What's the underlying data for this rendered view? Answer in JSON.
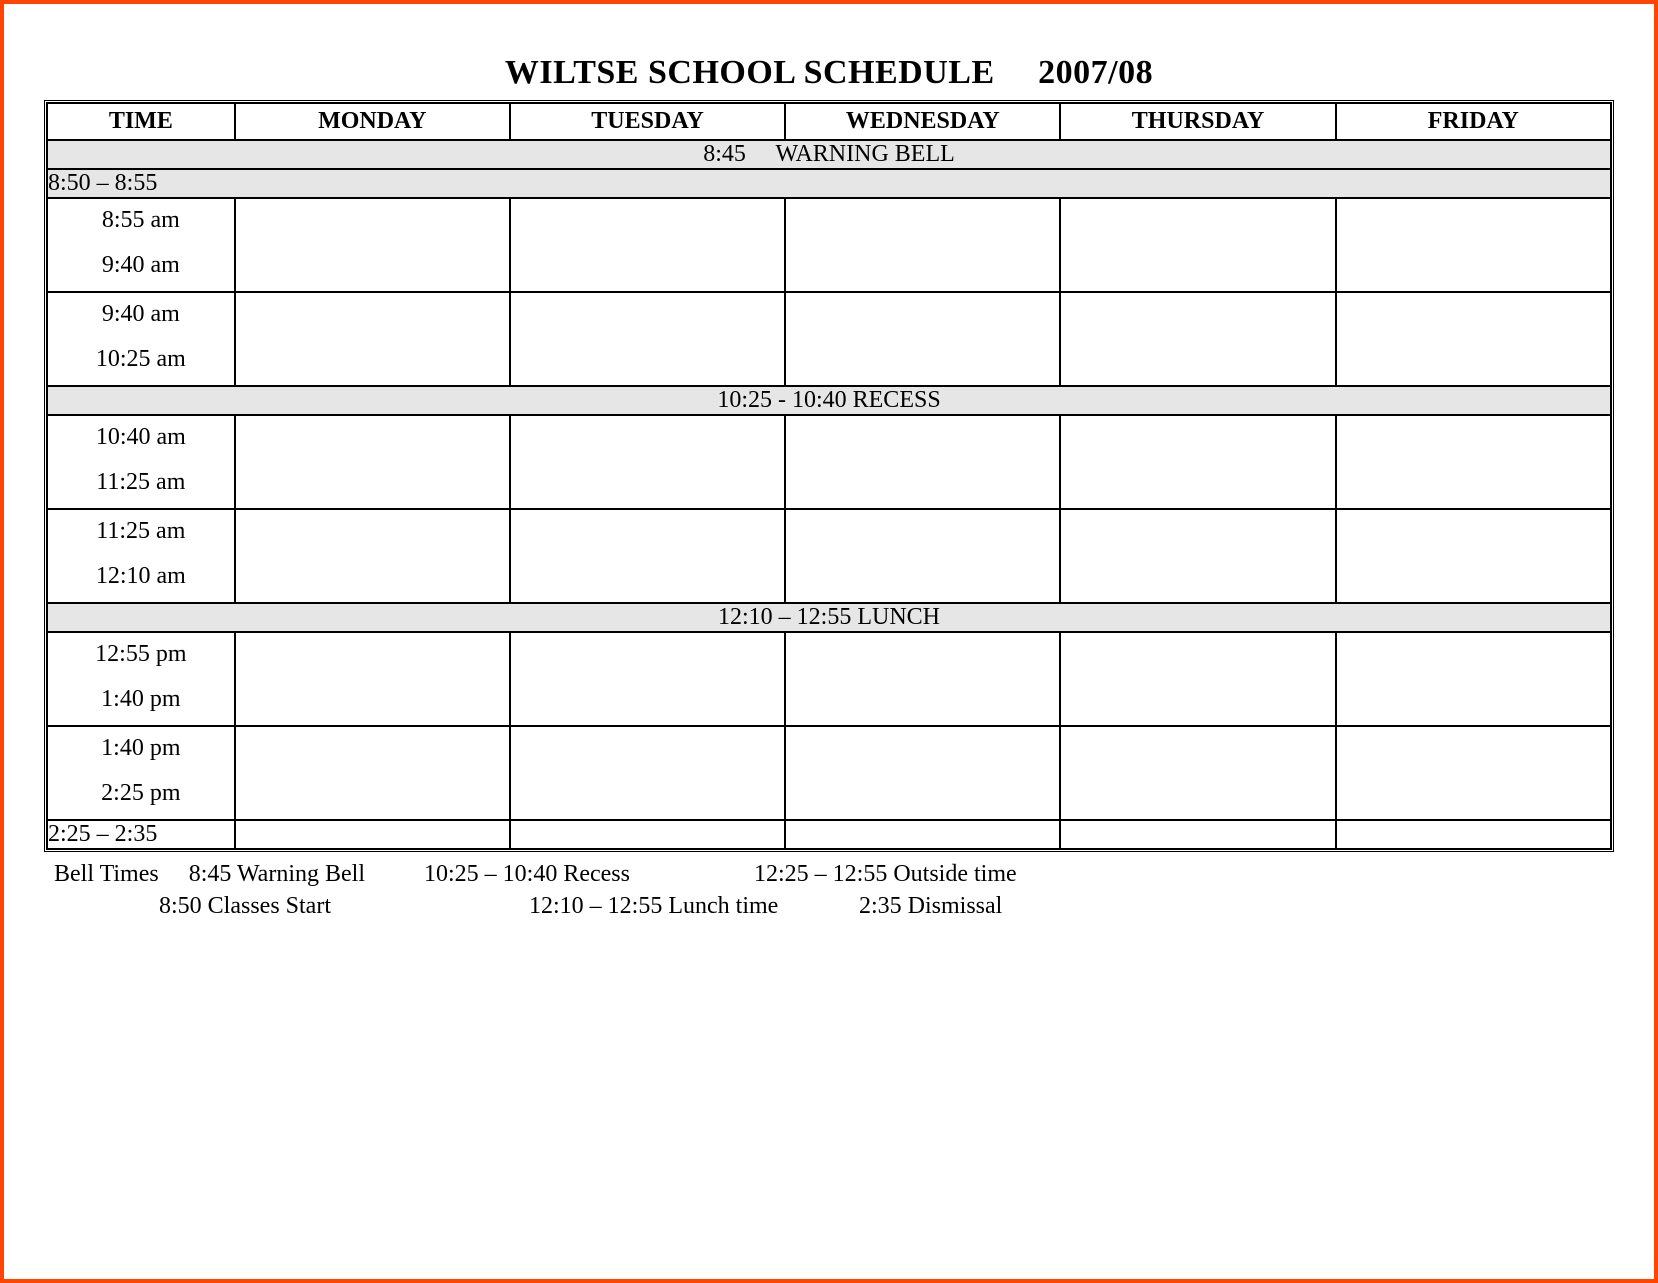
{
  "title": "WILTSE SCHOOL SCHEDULE  2007/08",
  "border_color": "#ff4500",
  "shaded_bg": "#e6e6e6",
  "font_family": "Times New Roman",
  "title_fontsize_pt": 26,
  "cell_fontsize_pt": 18,
  "columns": {
    "time": "TIME",
    "mon": "MONDAY",
    "tue": "TUESDAY",
    "wed": "WEDNESDAY",
    "thu": "THURSDAY",
    "fri": "FRIDAY"
  },
  "rows": {
    "warning_bell": "8:45  WARNING BELL",
    "prebell": "8:50 – 8:55",
    "p1": {
      "start": "8:55 am",
      "end": "9:40 am"
    },
    "p2": {
      "start": "9:40 am",
      "end": "10:25 am"
    },
    "recess": "10:25 - 10:40  RECESS",
    "p3": {
      "start": "10:40 am",
      "end": "11:25 am"
    },
    "p4": {
      "start": "11:25 am",
      "end": "12:10 am"
    },
    "lunch": "12:10 – 12:55  LUNCH",
    "p5": {
      "start": "12:55 pm",
      "end": "1:40 pm"
    },
    "p6": {
      "start": "1:40 pm",
      "end": "2:25 pm"
    },
    "last": "2:25 – 2:35"
  },
  "footer": {
    "line1": {
      "a": "Bell Times  8:45 Warning Bell",
      "b": "10:25 – 10:40  Recess",
      "c": "12:25 – 12:55 Outside time"
    },
    "line2": {
      "a": "8:50  Classes Start",
      "b": "12:10 – 12:55  Lunch time",
      "c": "2:35  Dismissal"
    }
  }
}
